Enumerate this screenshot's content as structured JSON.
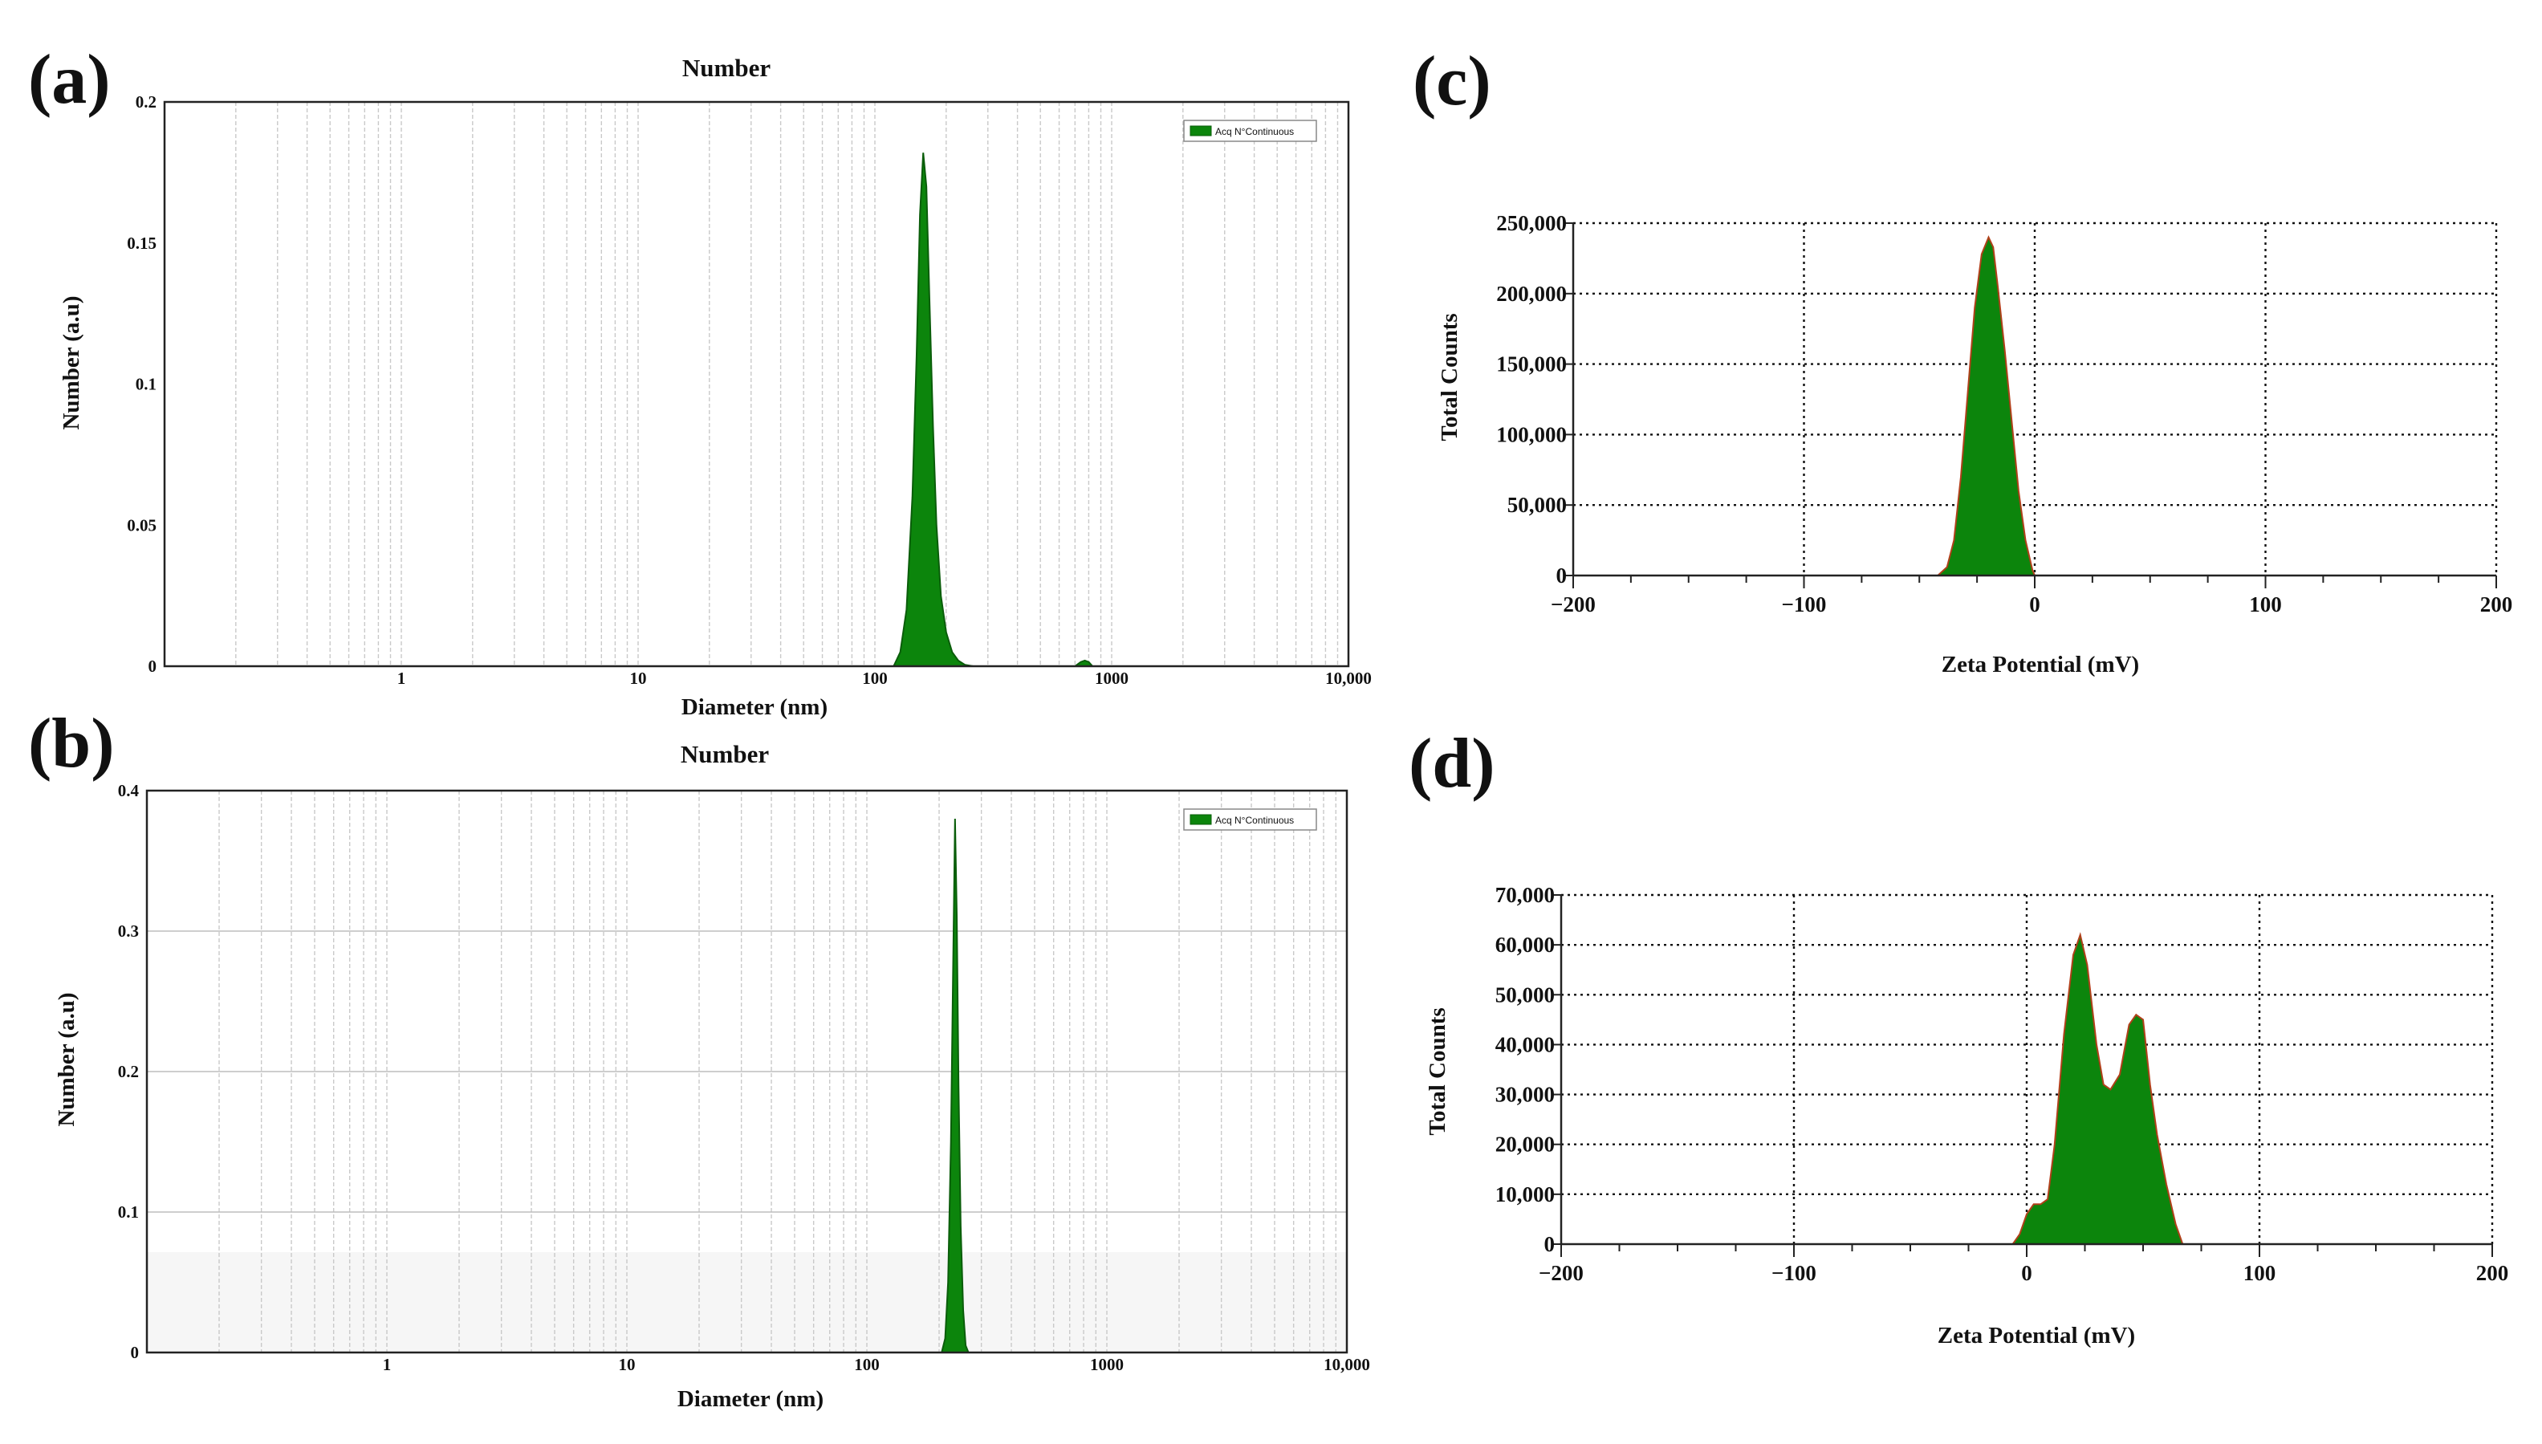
{
  "colors": {
    "fill": "#0c850c",
    "stroke": "#0a5d0a",
    "zeta_stroke": "#b0401a",
    "gridline_log": "#c9c9c9",
    "gridline_dotted": "#111111",
    "axis": "#222222"
  },
  "chart_data": [
    {
      "panel": "(a)",
      "type": "area",
      "title": "Number",
      "xlabel": "Diameter (nm)",
      "ylabel": "Number (a.u)",
      "x_scale": "log",
      "xlim": [
        0.1,
        10000
      ],
      "ylim": [
        0,
        0.2
      ],
      "xticks": [
        1,
        10,
        100,
        1000,
        10000
      ],
      "xtick_labels": [
        "1",
        "10",
        "100",
        "1000",
        "10,000"
      ],
      "yticks": [
        0,
        0.05,
        0.1,
        0.15,
        0.2
      ],
      "ytick_labels": [
        "0",
        "0.05",
        "0.1",
        "0.15",
        "0.2"
      ],
      "grid": "vertical minor lines",
      "legend": {
        "position": "top-right",
        "entries": [
          "Acq N°Continuous"
        ]
      },
      "series": [
        {
          "name": "Acq N°Continuous",
          "x": [
            120,
            128,
            136,
            144,
            150,
            155,
            160,
            165,
            170,
            176,
            182,
            190,
            200,
            212,
            225,
            240,
            260,
            700,
            740,
            770,
            800,
            830
          ],
          "y": [
            0,
            0.005,
            0.02,
            0.06,
            0.11,
            0.16,
            0.182,
            0.17,
            0.13,
            0.085,
            0.05,
            0.025,
            0.012,
            0.005,
            0.002,
            0.0005,
            0,
            0,
            0.0015,
            0.002,
            0.0015,
            0
          ]
        }
      ]
    },
    {
      "panel": "(b)",
      "type": "area",
      "title": "Number",
      "xlabel": "Diameter (nm)",
      "ylabel": "Number (a.u)",
      "x_scale": "log",
      "xlim": [
        0.1,
        10000
      ],
      "ylim": [
        0,
        0.4
      ],
      "xticks": [
        1,
        10,
        100,
        1000,
        10000
      ],
      "xtick_labels": [
        "1",
        "10",
        "100",
        "1000",
        "10,000"
      ],
      "yticks": [
        0,
        0.1,
        0.2,
        0.3,
        0.4
      ],
      "ytick_labels": [
        "0",
        "0.1",
        "0.2",
        "0.3",
        "0.4"
      ],
      "grid": "vertical minor lines and horizontal lines",
      "legend": {
        "position": "top-right",
        "entries": [
          "Acq N°Continuous"
        ]
      },
      "series": [
        {
          "name": "Acq N°Continuous",
          "x": [
            205,
            212,
            218,
            224,
            229,
            233,
            237,
            241,
            246,
            252,
            258,
            265
          ],
          "y": [
            0,
            0.01,
            0.05,
            0.15,
            0.28,
            0.38,
            0.31,
            0.19,
            0.09,
            0.03,
            0.005,
            0
          ]
        }
      ]
    },
    {
      "panel": "(c)",
      "type": "area",
      "title": "",
      "xlabel": "Zeta Potential (mV)",
      "ylabel": "Total Counts",
      "xlim": [
        -200,
        200
      ],
      "ylim": [
        0,
        250000
      ],
      "xticks": [
        -200,
        -100,
        0,
        100,
        200
      ],
      "xtick_labels": [
        "−200",
        "−100",
        "0",
        "100",
        "200"
      ],
      "yticks": [
        0,
        50000,
        100000,
        150000,
        200000,
        250000
      ],
      "ytick_labels": [
        "0",
        "50,000",
        "100,000",
        "150,000",
        "200,000",
        "250,000"
      ],
      "grid": "dotted both axes",
      "series": [
        {
          "x": [
            -150,
            -42,
            -38,
            -35,
            -32,
            -29,
            -26,
            -23,
            -20,
            -18,
            -16,
            -13,
            -10,
            -7,
            -4,
            -1,
            0,
            150
          ],
          "y": [
            0,
            0,
            6000,
            25000,
            70000,
            130000,
            190000,
            228000,
            240000,
            233000,
            205000,
            160000,
            110000,
            60000,
            25000,
            4000,
            0,
            0
          ]
        }
      ]
    },
    {
      "panel": "(d)",
      "type": "area",
      "title": "",
      "xlabel": "Zeta Potential (mV)",
      "ylabel": "Total Counts",
      "xlim": [
        -200,
        200
      ],
      "ylim": [
        0,
        70000
      ],
      "xticks": [
        -200,
        -100,
        0,
        100,
        200
      ],
      "xtick_labels": [
        "−200",
        "−100",
        "0",
        "100",
        "200"
      ],
      "yticks": [
        0,
        10000,
        20000,
        30000,
        40000,
        50000,
        60000,
        70000
      ],
      "ytick_labels": [
        "0",
        "10,000",
        "20,000",
        "30,000",
        "40,000",
        "50,000",
        "60,000",
        "70,000"
      ],
      "grid": "dotted both axes",
      "series": [
        {
          "x": [
            -150,
            -6,
            -3,
            0,
            3,
            6,
            9,
            12,
            16,
            20,
            23,
            26,
            30,
            33,
            36,
            40,
            44,
            47,
            50,
            53,
            56,
            60,
            64,
            67,
            150
          ],
          "y": [
            0,
            0,
            2000,
            6000,
            8000,
            8000,
            9000,
            20000,
            42000,
            58000,
            62000,
            56000,
            40000,
            32000,
            31000,
            34000,
            44000,
            46000,
            45000,
            32000,
            22000,
            12000,
            4000,
            0,
            0
          ]
        }
      ]
    }
  ]
}
